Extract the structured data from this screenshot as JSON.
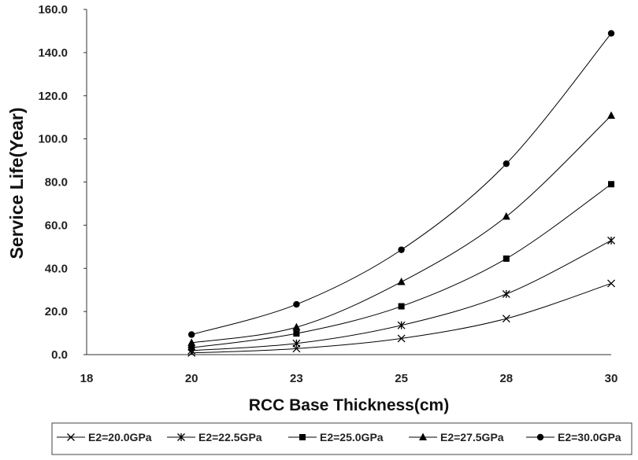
{
  "chart_data": {
    "type": "line",
    "title": "",
    "xlabel": "RCC Base Thickness(cm)",
    "ylabel": "Service Life(Year)",
    "x_categories": [
      "18",
      "20",
      "23",
      "25",
      "28",
      "30"
    ],
    "y_ticks": [
      "0.0",
      "20.0",
      "40.0",
      "60.0",
      "80.0",
      "100.0",
      "120.0",
      "140.0",
      "160.0"
    ],
    "ylim": [
      0,
      160
    ],
    "grid": false,
    "legend_position": "bottom",
    "series": [
      {
        "name": "E2=20.0GPa",
        "marker": "x",
        "x": [
          20,
          23,
          25,
          28,
          30
        ],
        "y": [
          0.8,
          2.8,
          7.5,
          16.7,
          33.0
        ]
      },
      {
        "name": "E2=22.5GPa",
        "marker": "star",
        "x": [
          20,
          23,
          25,
          28,
          30
        ],
        "y": [
          1.9,
          5.2,
          13.6,
          28.1,
          52.9
        ]
      },
      {
        "name": "E2=25.0GPa",
        "marker": "square",
        "x": [
          20,
          23,
          25,
          28,
          30
        ],
        "y": [
          3.2,
          9.8,
          22.4,
          44.5,
          79.0
        ]
      },
      {
        "name": "E2=27.5GPa",
        "marker": "triangle",
        "x": [
          20,
          23,
          25,
          28,
          30
        ],
        "y": [
          5.5,
          12.7,
          33.7,
          64.0,
          110.8
        ]
      },
      {
        "name": "E2=30.0GPa",
        "marker": "circle",
        "x": [
          20,
          23,
          25,
          28,
          30
        ],
        "y": [
          9.3,
          23.3,
          48.6,
          88.5,
          148.9
        ]
      }
    ]
  }
}
